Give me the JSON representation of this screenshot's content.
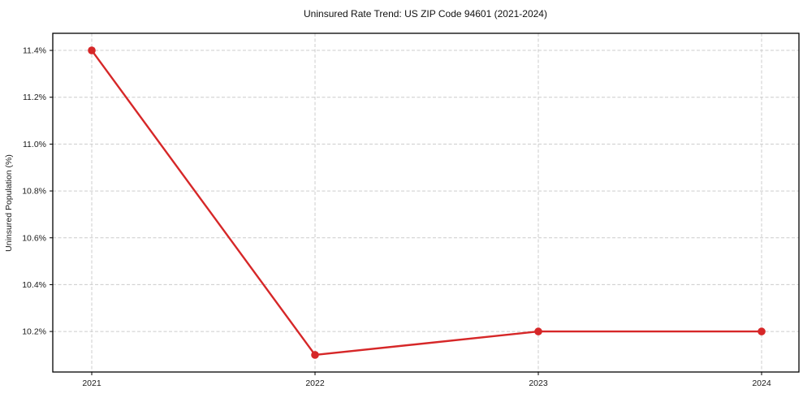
{
  "chart_data": {
    "type": "line",
    "title": "Uninsured Rate Trend: US ZIP Code 94601 (2021-2024)",
    "xlabel": "",
    "ylabel": "Uninsured Population (%)",
    "x_labels": [
      "2021",
      "2022",
      "2023",
      "2024"
    ],
    "series": [
      {
        "name": "Uninsured Population (%)",
        "values": [
          11.4,
          10.1,
          10.2,
          10.2
        ]
      }
    ],
    "yticks": [
      11.4,
      11.2,
      11.0,
      10.8,
      10.6,
      10.4,
      10.2
    ],
    "ytick_labels": [
      "11.4%",
      "11.2%",
      "11.0%",
      "10.8%",
      "10.6%",
      "10.4%",
      "10.2%"
    ],
    "ylim": [
      10.027,
      11.473
    ],
    "grid": "dashed horizontal and vertical",
    "legend_position": "none",
    "colors": {
      "line": "#d62728",
      "marker": "#d62728",
      "grid": "#cccccc",
      "spine": "#000000",
      "background": "#ffffff"
    }
  }
}
